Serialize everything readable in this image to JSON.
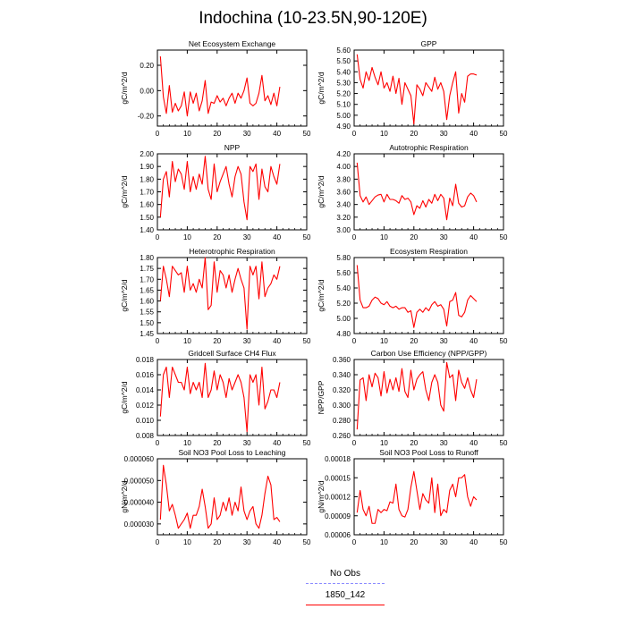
{
  "title": "Indochina (10-23.5N,90-120E)",
  "colors": {
    "series": "#ff0000",
    "obs": "#8c8cff",
    "axis": "#000000"
  },
  "legend": [
    {
      "label": "No Obs",
      "color": "#8c8cff",
      "style": "dashed"
    },
    {
      "label": "1850_142",
      "color": "#ff0000",
      "style": "solid"
    }
  ],
  "chart_data": [
    {
      "type": "line",
      "title": "Net Ecosystem Exchange",
      "ylabel": "gC/m^2/d",
      "xlim": [
        0,
        50
      ],
      "ylim": [
        -0.28,
        0.32
      ],
      "xticks": [
        0,
        10,
        20,
        30,
        40,
        50
      ],
      "yticks": [
        -0.2,
        0.0,
        0.2
      ],
      "ytick_labels": [
        "-0.20",
        "0.00",
        "0.20"
      ],
      "x": [
        1,
        2,
        3,
        4,
        5,
        6,
        7,
        8,
        9,
        10,
        11,
        12,
        13,
        14,
        15,
        16,
        17,
        18,
        19,
        20,
        21,
        22,
        23,
        24,
        25,
        26,
        27,
        28,
        29,
        30,
        31,
        32,
        33,
        34,
        35,
        36,
        37,
        38,
        39,
        40,
        41
      ],
      "series": [
        {
          "values": [
            0.27,
            -0.05,
            -0.18,
            0.04,
            -0.17,
            -0.1,
            -0.16,
            -0.12,
            -0.01,
            -0.2,
            -0.01,
            -0.1,
            -0.02,
            -0.16,
            -0.08,
            0.08,
            -0.18,
            -0.09,
            -0.1,
            -0.04,
            -0.09,
            -0.06,
            -0.12,
            -0.06,
            -0.02,
            -0.1,
            -0.02,
            -0.06,
            0.0,
            0.1,
            -0.1,
            -0.12,
            -0.1,
            -0.02,
            0.12,
            -0.08,
            -0.04,
            -0.11,
            -0.02,
            -0.12,
            0.03
          ]
        }
      ]
    },
    {
      "type": "line",
      "title": "GPP",
      "ylabel": "gC/m^2/d",
      "xlim": [
        0,
        50
      ],
      "ylim": [
        4.9,
        5.6
      ],
      "xticks": [
        0,
        10,
        20,
        30,
        40,
        50
      ],
      "yticks": [
        4.9,
        5.0,
        5.1,
        5.2,
        5.3,
        5.4,
        5.5,
        5.6
      ],
      "ytick_labels": [
        "4.90",
        "5.00",
        "5.10",
        "5.20",
        "5.30",
        "5.40",
        "5.50",
        "5.60"
      ],
      "x": [
        1,
        2,
        3,
        4,
        5,
        6,
        7,
        8,
        9,
        10,
        11,
        12,
        13,
        14,
        15,
        16,
        17,
        18,
        19,
        20,
        21,
        22,
        23,
        24,
        25,
        26,
        27,
        28,
        29,
        30,
        31,
        32,
        33,
        34,
        35,
        36,
        37,
        38,
        39,
        40,
        41
      ],
      "series": [
        {
          "values": [
            5.56,
            5.33,
            5.25,
            5.4,
            5.32,
            5.44,
            5.35,
            5.28,
            5.4,
            5.25,
            5.3,
            5.22,
            5.36,
            5.2,
            5.34,
            5.1,
            5.3,
            5.24,
            5.18,
            4.92,
            5.28,
            5.24,
            5.18,
            5.3,
            5.26,
            5.22,
            5.35,
            5.24,
            5.3,
            5.22,
            4.96,
            5.18,
            5.3,
            5.4,
            5.02,
            5.2,
            5.12,
            5.36,
            5.38,
            5.38,
            5.37
          ]
        }
      ]
    },
    {
      "type": "line",
      "title": "NPP",
      "ylabel": "gC/m^2/d",
      "xlim": [
        0,
        50
      ],
      "ylim": [
        1.4,
        2.0
      ],
      "xticks": [
        0,
        10,
        20,
        30,
        40,
        50
      ],
      "yticks": [
        1.4,
        1.5,
        1.6,
        1.7,
        1.8,
        1.9,
        2.0
      ],
      "ytick_labels": [
        "1.40",
        "1.50",
        "1.60",
        "1.70",
        "1.80",
        "1.90",
        "2.00"
      ],
      "x": [
        1,
        2,
        3,
        4,
        5,
        6,
        7,
        8,
        9,
        10,
        11,
        12,
        13,
        14,
        15,
        16,
        17,
        18,
        19,
        20,
        21,
        22,
        23,
        24,
        25,
        26,
        27,
        28,
        29,
        30,
        31,
        32,
        33,
        34,
        35,
        36,
        37,
        38,
        39,
        40,
        41
      ],
      "series": [
        {
          "values": [
            1.5,
            1.8,
            1.86,
            1.66,
            1.94,
            1.78,
            1.88,
            1.84,
            1.72,
            1.94,
            1.7,
            1.82,
            1.72,
            1.84,
            1.76,
            1.98,
            1.72,
            1.64,
            1.92,
            1.7,
            1.78,
            1.84,
            1.9,
            1.76,
            1.66,
            1.82,
            1.9,
            1.84,
            1.62,
            1.48,
            1.9,
            1.86,
            1.92,
            1.64,
            1.88,
            1.74,
            1.7,
            1.9,
            1.82,
            1.76,
            1.92
          ]
        }
      ]
    },
    {
      "type": "line",
      "title": "Autotrophic Respiration",
      "ylabel": "gC/m^2/d",
      "xlim": [
        0,
        50
      ],
      "ylim": [
        3.0,
        4.2
      ],
      "xticks": [
        0,
        10,
        20,
        30,
        40,
        50
      ],
      "yticks": [
        3.0,
        3.2,
        3.4,
        3.6,
        3.8,
        4.0,
        4.2
      ],
      "ytick_labels": [
        "3.00",
        "3.20",
        "3.40",
        "3.60",
        "3.80",
        "4.00",
        "4.20"
      ],
      "x": [
        1,
        2,
        3,
        4,
        5,
        6,
        7,
        8,
        9,
        10,
        11,
        12,
        13,
        14,
        15,
        16,
        17,
        18,
        19,
        20,
        21,
        22,
        23,
        24,
        25,
        26,
        27,
        28,
        29,
        30,
        31,
        32,
        33,
        34,
        35,
        36,
        37,
        38,
        39,
        40,
        41
      ],
      "series": [
        {
          "values": [
            4.06,
            3.54,
            3.44,
            3.52,
            3.4,
            3.46,
            3.52,
            3.55,
            3.56,
            3.44,
            3.56,
            3.48,
            3.48,
            3.46,
            3.42,
            3.54,
            3.48,
            3.5,
            3.44,
            3.24,
            3.38,
            3.34,
            3.46,
            3.36,
            3.48,
            3.42,
            3.56,
            3.46,
            3.56,
            3.5,
            3.16,
            3.5,
            3.38,
            3.72,
            3.42,
            3.36,
            3.38,
            3.52,
            3.58,
            3.54,
            3.44
          ]
        }
      ]
    },
    {
      "type": "line",
      "title": "Heterotrophic Respiration",
      "ylabel": "gC/m^2/d",
      "xlim": [
        0,
        50
      ],
      "ylim": [
        1.45,
        1.8
      ],
      "xticks": [
        0,
        10,
        20,
        30,
        40,
        50
      ],
      "yticks": [
        1.45,
        1.5,
        1.55,
        1.6,
        1.65,
        1.7,
        1.75,
        1.8
      ],
      "ytick_labels": [
        "1.45",
        "1.50",
        "1.55",
        "1.60",
        "1.65",
        "1.70",
        "1.75",
        "1.80"
      ],
      "x": [
        1,
        2,
        3,
        4,
        5,
        6,
        7,
        8,
        9,
        10,
        11,
        12,
        13,
        14,
        15,
        16,
        17,
        18,
        19,
        20,
        21,
        22,
        23,
        24,
        25,
        26,
        27,
        28,
        29,
        30,
        31,
        32,
        33,
        34,
        35,
        36,
        37,
        38,
        39,
        40,
        41
      ],
      "series": [
        {
          "values": [
            1.6,
            1.76,
            1.7,
            1.62,
            1.76,
            1.74,
            1.72,
            1.73,
            1.64,
            1.76,
            1.65,
            1.68,
            1.64,
            1.7,
            1.66,
            1.8,
            1.56,
            1.58,
            1.78,
            1.64,
            1.74,
            1.72,
            1.66,
            1.72,
            1.64,
            1.7,
            1.75,
            1.7,
            1.66,
            1.47,
            1.76,
            1.72,
            1.76,
            1.61,
            1.78,
            1.62,
            1.66,
            1.68,
            1.72,
            1.7,
            1.76
          ]
        }
      ]
    },
    {
      "type": "line",
      "title": "Ecosystem Respiration",
      "ylabel": "gC/m^2/d",
      "xlim": [
        0,
        50
      ],
      "ylim": [
        4.8,
        5.8
      ],
      "xticks": [
        0,
        10,
        20,
        30,
        40,
        50
      ],
      "yticks": [
        4.8,
        5.0,
        5.2,
        5.4,
        5.6,
        5.8
      ],
      "ytick_labels": [
        "4.80",
        "5.00",
        "5.20",
        "5.40",
        "5.60",
        "5.80"
      ],
      "x": [
        1,
        2,
        3,
        4,
        5,
        6,
        7,
        8,
        9,
        10,
        11,
        12,
        13,
        14,
        15,
        16,
        17,
        18,
        19,
        20,
        21,
        22,
        23,
        24,
        25,
        26,
        27,
        28,
        29,
        30,
        31,
        32,
        33,
        34,
        35,
        36,
        37,
        38,
        39,
        40,
        41
      ],
      "series": [
        {
          "values": [
            5.7,
            5.24,
            5.14,
            5.14,
            5.16,
            5.24,
            5.28,
            5.26,
            5.2,
            5.18,
            5.22,
            5.16,
            5.14,
            5.16,
            5.12,
            5.14,
            5.14,
            5.08,
            5.1,
            4.88,
            5.08,
            5.12,
            5.08,
            5.14,
            5.1,
            5.18,
            5.22,
            5.16,
            5.18,
            5.12,
            4.9,
            5.22,
            5.24,
            5.34,
            5.04,
            5.02,
            5.08,
            5.24,
            5.3,
            5.26,
            5.22
          ]
        }
      ]
    },
    {
      "type": "line",
      "title": "Gridcell Surface CH4 Flux",
      "ylabel": "gC/m^2/d",
      "xlim": [
        0,
        50
      ],
      "ylim": [
        0.008,
        0.018
      ],
      "xticks": [
        0,
        10,
        20,
        30,
        40,
        50
      ],
      "yticks": [
        0.008,
        0.01,
        0.012,
        0.014,
        0.016,
        0.018
      ],
      "ytick_labels": [
        "0.008",
        "0.010",
        "0.012",
        "0.014",
        "0.016",
        "0.018"
      ],
      "x": [
        1,
        2,
        3,
        4,
        5,
        6,
        7,
        8,
        9,
        10,
        11,
        12,
        13,
        14,
        15,
        16,
        17,
        18,
        19,
        20,
        21,
        22,
        23,
        24,
        25,
        26,
        27,
        28,
        29,
        30,
        31,
        32,
        33,
        34,
        35,
        36,
        37,
        38,
        39,
        40,
        41
      ],
      "series": [
        {
          "values": [
            0.0105,
            0.016,
            0.017,
            0.013,
            0.017,
            0.016,
            0.015,
            0.015,
            0.014,
            0.017,
            0.0135,
            0.015,
            0.014,
            0.015,
            0.013,
            0.0175,
            0.013,
            0.014,
            0.0165,
            0.014,
            0.016,
            0.015,
            0.013,
            0.0155,
            0.014,
            0.015,
            0.016,
            0.015,
            0.013,
            0.0085,
            0.016,
            0.015,
            0.016,
            0.012,
            0.017,
            0.0115,
            0.0125,
            0.014,
            0.014,
            0.013,
            0.015
          ]
        }
      ]
    },
    {
      "type": "line",
      "title": "Carbon Use Efficiency (NPP/GPP)",
      "ylabel": "NPP/GPP",
      "xlim": [
        0,
        50
      ],
      "ylim": [
        0.26,
        0.36
      ],
      "xticks": [
        0,
        10,
        20,
        30,
        40,
        50
      ],
      "yticks": [
        0.26,
        0.28,
        0.3,
        0.32,
        0.34,
        0.36
      ],
      "ytick_labels": [
        "0.260",
        "0.280",
        "0.300",
        "0.320",
        "0.340",
        "0.360"
      ],
      "x": [
        1,
        2,
        3,
        4,
        5,
        6,
        7,
        8,
        9,
        10,
        11,
        12,
        13,
        14,
        15,
        16,
        17,
        18,
        19,
        20,
        21,
        22,
        23,
        24,
        25,
        26,
        27,
        28,
        29,
        30,
        31,
        32,
        33,
        34,
        35,
        36,
        37,
        38,
        39,
        40,
        41
      ],
      "series": [
        {
          "values": [
            0.268,
            0.333,
            0.336,
            0.306,
            0.34,
            0.324,
            0.342,
            0.336,
            0.312,
            0.344,
            0.316,
            0.334,
            0.32,
            0.336,
            0.318,
            0.348,
            0.318,
            0.31,
            0.346,
            0.32,
            0.334,
            0.34,
            0.344,
            0.32,
            0.306,
            0.33,
            0.34,
            0.33,
            0.3,
            0.292,
            0.356,
            0.336,
            0.34,
            0.306,
            0.346,
            0.33,
            0.322,
            0.336,
            0.32,
            0.31,
            0.334
          ]
        }
      ]
    },
    {
      "type": "line",
      "title": "Soil NO3 Pool Loss to Leaching",
      "ylabel": "gN/m^2/d",
      "xlim": [
        0,
        50
      ],
      "ylim": [
        2.5e-05,
        6e-05
      ],
      "xticks": [
        0,
        10,
        20,
        30,
        40,
        50
      ],
      "yticks": [
        3e-05,
        4e-05,
        5e-05,
        6e-05
      ],
      "ytick_labels": [
        "0.000030",
        "0.000040",
        "0.000050",
        "0.000060"
      ],
      "x": [
        1,
        2,
        3,
        4,
        5,
        6,
        7,
        8,
        9,
        10,
        11,
        12,
        13,
        14,
        15,
        16,
        17,
        18,
        19,
        20,
        21,
        22,
        23,
        24,
        25,
        26,
        27,
        28,
        29,
        30,
        31,
        32,
        33,
        34,
        35,
        36,
        37,
        38,
        39,
        40,
        41
      ],
      "series": [
        {
          "values": [
            3.2e-05,
            5.7e-05,
            4.8e-05,
            3.6e-05,
            3.9e-05,
            3.4e-05,
            2.8e-05,
            3e-05,
            3.2e-05,
            3.5e-05,
            2.8e-05,
            3.4e-05,
            3.4e-05,
            3.8e-05,
            4.6e-05,
            3.8e-05,
            2.8e-05,
            3e-05,
            4.2e-05,
            3.2e-05,
            3.4e-05,
            4e-05,
            3.6e-05,
            4.2e-05,
            3.4e-05,
            4e-05,
            3.6e-05,
            4.7e-05,
            3.6e-05,
            3.2e-05,
            3.6e-05,
            3.8e-05,
            3e-05,
            2.8e-05,
            3.4e-05,
            4.4e-05,
            5.2e-05,
            4.8e-05,
            3.2e-05,
            3.3e-05,
            3.1e-05
          ]
        }
      ]
    },
    {
      "type": "line",
      "title": "Soil NO3 Pool Loss to Runoff",
      "ylabel": "gN/m^2/d",
      "xlim": [
        0,
        50
      ],
      "ylim": [
        6e-05,
        0.00018
      ],
      "xticks": [
        0,
        10,
        20,
        30,
        40,
        50
      ],
      "yticks": [
        6e-05,
        9e-05,
        0.00012,
        0.00015,
        0.00018
      ],
      "ytick_labels": [
        "0.00006",
        "0.00009",
        "0.00012",
        "0.00015",
        "0.00018"
      ],
      "x": [
        1,
        2,
        3,
        4,
        5,
        6,
        7,
        8,
        9,
        10,
        11,
        12,
        13,
        14,
        15,
        16,
        17,
        18,
        19,
        20,
        21,
        22,
        23,
        24,
        25,
        26,
        27,
        28,
        29,
        30,
        31,
        32,
        33,
        34,
        35,
        36,
        37,
        38,
        39,
        40,
        41
      ],
      "series": [
        {
          "values": [
            9.5e-05,
            0.00013,
            0.0001,
            9e-05,
            0.000105,
            7.8e-05,
            7.8e-05,
            0.0001,
            9.5e-05,
            0.0001,
            9.8e-05,
            0.000112,
            0.00011,
            0.00014,
            0.0001,
            9e-05,
            8.8e-05,
            0.0001,
            0.000135,
            0.00016,
            0.00013,
            0.0001,
            0.000125,
            0.000115,
            0.00011,
            0.00015,
            9.5e-05,
            0.00014,
            9e-05,
            0.0001,
            9.5e-05,
            0.00013,
            0.00014,
            0.00012,
            0.00015,
            0.00015,
            0.000155,
            0.00012,
            0.000105,
            0.00012,
            0.000115
          ]
        }
      ]
    }
  ]
}
